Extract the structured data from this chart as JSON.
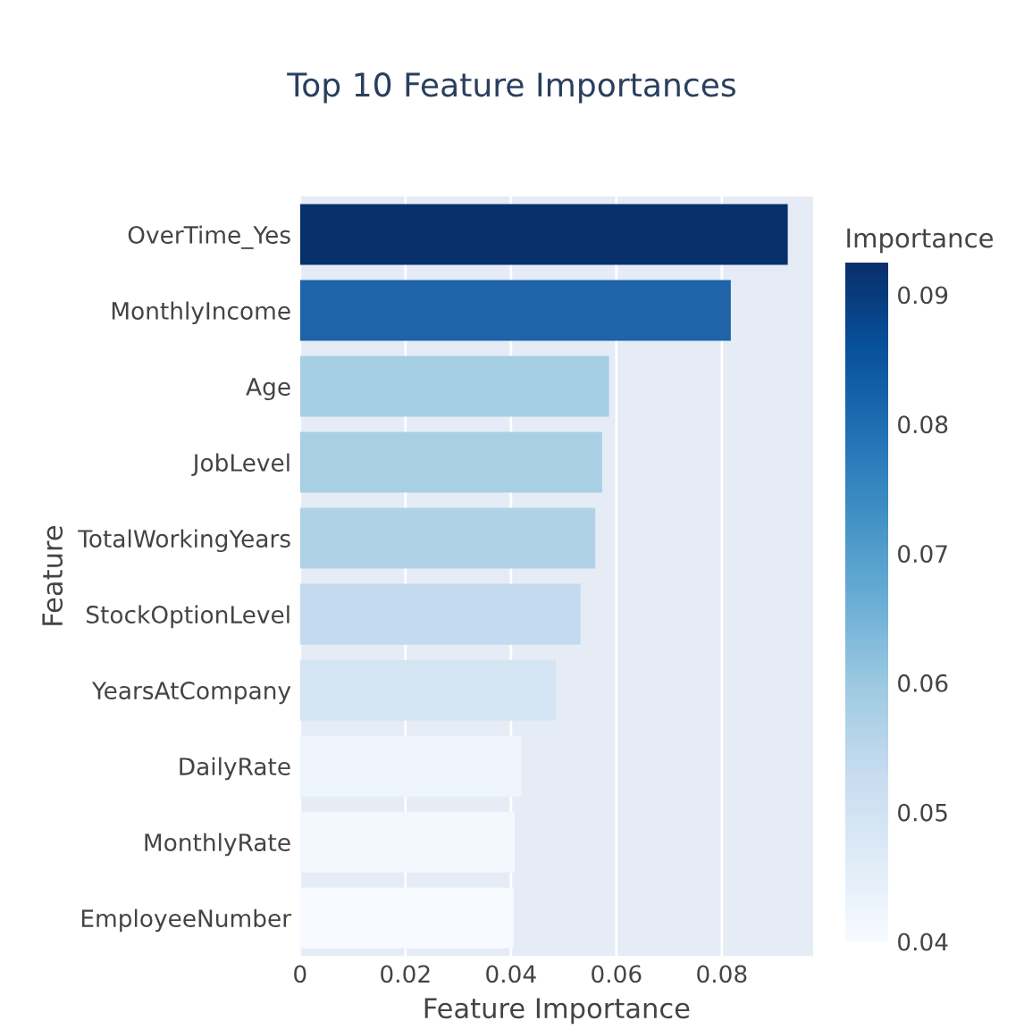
{
  "chart_data": {
    "type": "bar",
    "orientation": "horizontal",
    "title": "Top 10 Feature Importances",
    "xlabel": "Feature Importance",
    "ylabel": "Feature",
    "clabel": "Importance",
    "categories": [
      "OverTime_Yes",
      "MonthlyIncome",
      "Age",
      "JobLevel",
      "TotalWorkingYears",
      "StockOptionLevel",
      "YearsAtCompany",
      "DailyRate",
      "MonthlyRate",
      "EmployeeNumber"
    ],
    "values": [
      0.0925,
      0.0817,
      0.0586,
      0.0573,
      0.056,
      0.0532,
      0.0485,
      0.042,
      0.0407,
      0.0405
    ],
    "colors": [
      "#08306b",
      "#1f63a8",
      "#a6cee4",
      "#a9cfe5",
      "#b0d2e7",
      "#c4daee",
      "#d6e5f4",
      "#eef5fc",
      "#f3f8fe",
      "#f7fbff"
    ],
    "xlim": [
      0,
      0.0973
    ],
    "xticks": [
      0,
      0.02,
      0.04,
      0.06,
      0.08
    ],
    "clim": [
      0.04,
      0.0925
    ],
    "cticks": [
      0.04,
      0.05,
      0.06,
      0.07,
      0.08,
      0.09
    ],
    "grid": "x",
    "legend": false
  }
}
